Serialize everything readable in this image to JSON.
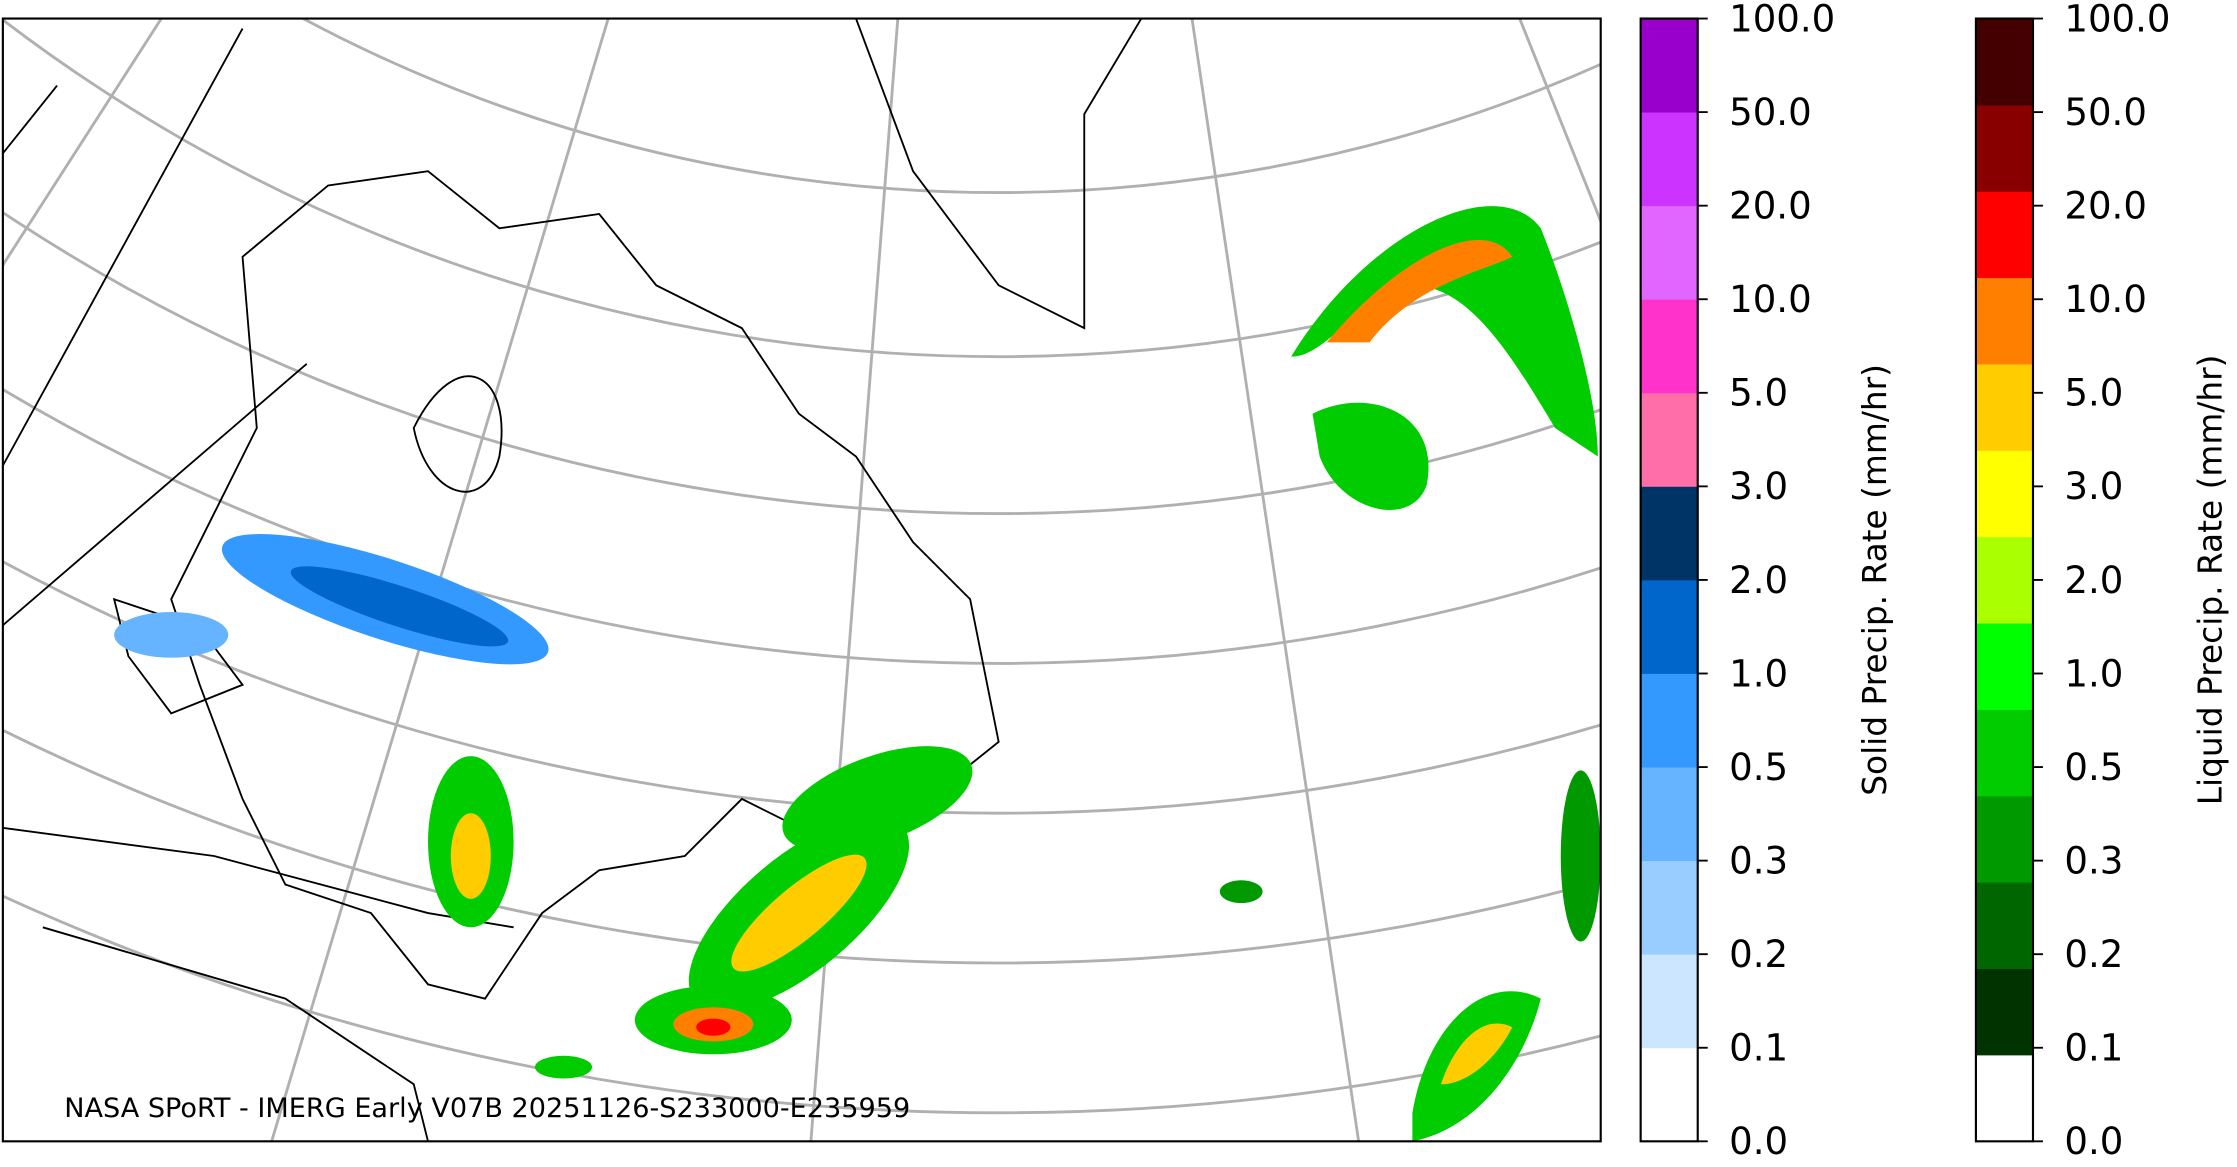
{
  "map": {
    "annotation": "NASA SPoRT - IMERG Early V07B 20251126-S233000-E235959"
  },
  "colorbars": [
    {
      "label": "Solid Precip. Rate (mm/hr)",
      "ticks": [
        "0.0",
        "0.1",
        "0.2",
        "0.3",
        "0.5",
        "1.0",
        "2.0",
        "3.0",
        "5.0",
        "10.0",
        "20.0",
        "50.0",
        "100.0"
      ],
      "colors": [
        "#ffffff",
        "#cce6ff",
        "#99ccff",
        "#66b3ff",
        "#3399ff",
        "#0066cc",
        "#003366",
        "#ff6ea8",
        "#ff33cc",
        "#e066ff",
        "#cc33ff",
        "#9900cc"
      ]
    },
    {
      "label": "Liquid Precip. Rate (mm/hr)",
      "ticks": [
        "0.0",
        "0.1",
        "0.2",
        "0.3",
        "0.5",
        "1.0",
        "2.0",
        "3.0",
        "5.0",
        "10.0",
        "20.0",
        "50.0",
        "100.0"
      ],
      "colors": [
        "#ffffff",
        "#003300",
        "#006600",
        "#009900",
        "#00cc00",
        "#00ff00",
        "#aaff00",
        "#ffff00",
        "#ffcc00",
        "#ff8000",
        "#ff0000",
        "#880000",
        "#440000"
      ]
    }
  ]
}
